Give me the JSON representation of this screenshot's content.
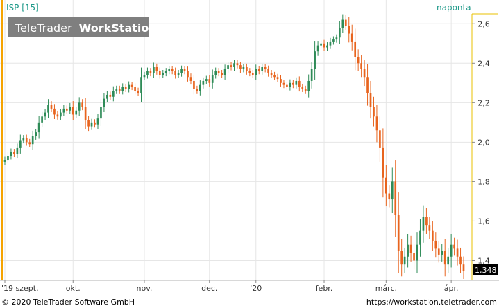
{
  "header": {
    "symbol_label": "ISP [15]",
    "interval_label": "naponta"
  },
  "watermark": {
    "brand_light": "TeleTrader",
    "brand_bold": "WorkStation"
  },
  "footer": {
    "copyright": "© 2020 TeleTrader Software GmbH",
    "url": "https://workstation.teletrader.com"
  },
  "colors": {
    "up": "#2e8b57",
    "down": "#e8641e",
    "grid": "#e6e6e6",
    "axis_line": "#e8c000",
    "header_text": "#1f9a8a",
    "last_price_bg": "#000000"
  },
  "chart_data": {
    "type": "candlestick",
    "y_axis": {
      "min": 1.3,
      "max": 2.65,
      "ticks": [
        1.4,
        1.6,
        1.8,
        2.0,
        2.2,
        2.4,
        2.6
      ],
      "tick_labels": [
        "1,4",
        "1,6",
        "1,8",
        "2,0",
        "2,2",
        "2,4",
        "2,6"
      ],
      "position": "right"
    },
    "x_axis": {
      "labels": [
        {
          "index": 0,
          "text": "'19 szept."
        },
        {
          "index": 22,
          "text": "okt."
        },
        {
          "index": 45,
          "text": "nov."
        },
        {
          "index": 66,
          "text": "dec."
        },
        {
          "index": 81,
          "text": "'20"
        },
        {
          "index": 103,
          "text": "febr."
        },
        {
          "index": 123,
          "text": "márc."
        },
        {
          "index": 144,
          "text": "ápr."
        }
      ]
    },
    "grid": true,
    "last_price": "1,348",
    "close": [
      1.91,
      1.93,
      1.95,
      1.94,
      1.97,
      2.01,
      2.02,
      2.0,
      1.99,
      2.03,
      2.05,
      2.1,
      2.13,
      2.15,
      2.19,
      2.17,
      2.14,
      2.13,
      2.15,
      2.17,
      2.16,
      2.18,
      2.14,
      2.16,
      2.2,
      2.18,
      2.11,
      2.08,
      2.1,
      2.09,
      2.12,
      2.18,
      2.22,
      2.24,
      2.23,
      2.26,
      2.27,
      2.26,
      2.28,
      2.27,
      2.29,
      2.28,
      2.26,
      2.25,
      2.33,
      2.34,
      2.36,
      2.35,
      2.38,
      2.36,
      2.34,
      2.35,
      2.36,
      2.37,
      2.36,
      2.34,
      2.35,
      2.37,
      2.36,
      2.33,
      2.31,
      2.27,
      2.26,
      2.29,
      2.31,
      2.32,
      2.3,
      2.34,
      2.36,
      2.35,
      2.34,
      2.37,
      2.39,
      2.38,
      2.4,
      2.39,
      2.37,
      2.38,
      2.36,
      2.35,
      2.34,
      2.37,
      2.36,
      2.38,
      2.37,
      2.35,
      2.34,
      2.33,
      2.32,
      2.3,
      2.29,
      2.28,
      2.3,
      2.29,
      2.31,
      2.28,
      2.27,
      2.26,
      2.31,
      2.37,
      2.46,
      2.49,
      2.5,
      2.48,
      2.49,
      2.51,
      2.52,
      2.53,
      2.58,
      2.62,
      2.59,
      2.55,
      2.51,
      2.43,
      2.4,
      2.37,
      2.33,
      2.25,
      2.18,
      2.13,
      2.06,
      1.97,
      1.82,
      1.74,
      1.71,
      1.8,
      1.63,
      1.45,
      1.38,
      1.42,
      1.48,
      1.44,
      1.4,
      1.48,
      1.55,
      1.62,
      1.58,
      1.55,
      1.5,
      1.46,
      1.43,
      1.45,
      1.38,
      1.42,
      1.48,
      1.46,
      1.42,
      1.38,
      1.348
    ]
  }
}
